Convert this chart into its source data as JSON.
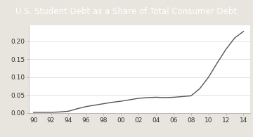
{
  "title": "U.S. Student Debt as a Share of Total Consumer Debt",
  "title_bg_color": "#1f3864",
  "title_text_color": "#ffffff",
  "line_color": "#555555",
  "plot_bg_color": "#ffffff",
  "fig_bg_color": "#e8e4de",
  "x_values": [
    1990,
    1991,
    1992,
    1993,
    1994,
    1995,
    1996,
    1997,
    1998,
    1999,
    2000,
    2001,
    2002,
    2003,
    2004,
    2005,
    2006,
    2007,
    2008,
    2009,
    2010,
    2011,
    2012,
    2013,
    2014
  ],
  "y_values": [
    0.002,
    0.002,
    0.002,
    0.003,
    0.005,
    0.012,
    0.018,
    0.022,
    0.026,
    0.03,
    0.033,
    0.037,
    0.041,
    0.043,
    0.044,
    0.043,
    0.044,
    0.046,
    0.048,
    0.068,
    0.1,
    0.14,
    0.178,
    0.21,
    0.228
  ],
  "xtick_labels": [
    "90",
    "92",
    "94",
    "96",
    "98",
    "00",
    "02",
    "04",
    "06",
    "08",
    "10",
    "12",
    "14"
  ],
  "xtick_values": [
    1990,
    1992,
    1994,
    1996,
    1998,
    2000,
    2002,
    2004,
    2006,
    2008,
    2010,
    2012,
    2014
  ],
  "yticks": [
    0.0,
    0.05,
    0.1,
    0.15,
    0.2
  ],
  "ylim": [
    0.0,
    0.245
  ],
  "xlim": [
    1989.5,
    2014.8
  ],
  "title_fontsize": 8.5,
  "tick_fontsize": 6.5,
  "linewidth": 1.0
}
